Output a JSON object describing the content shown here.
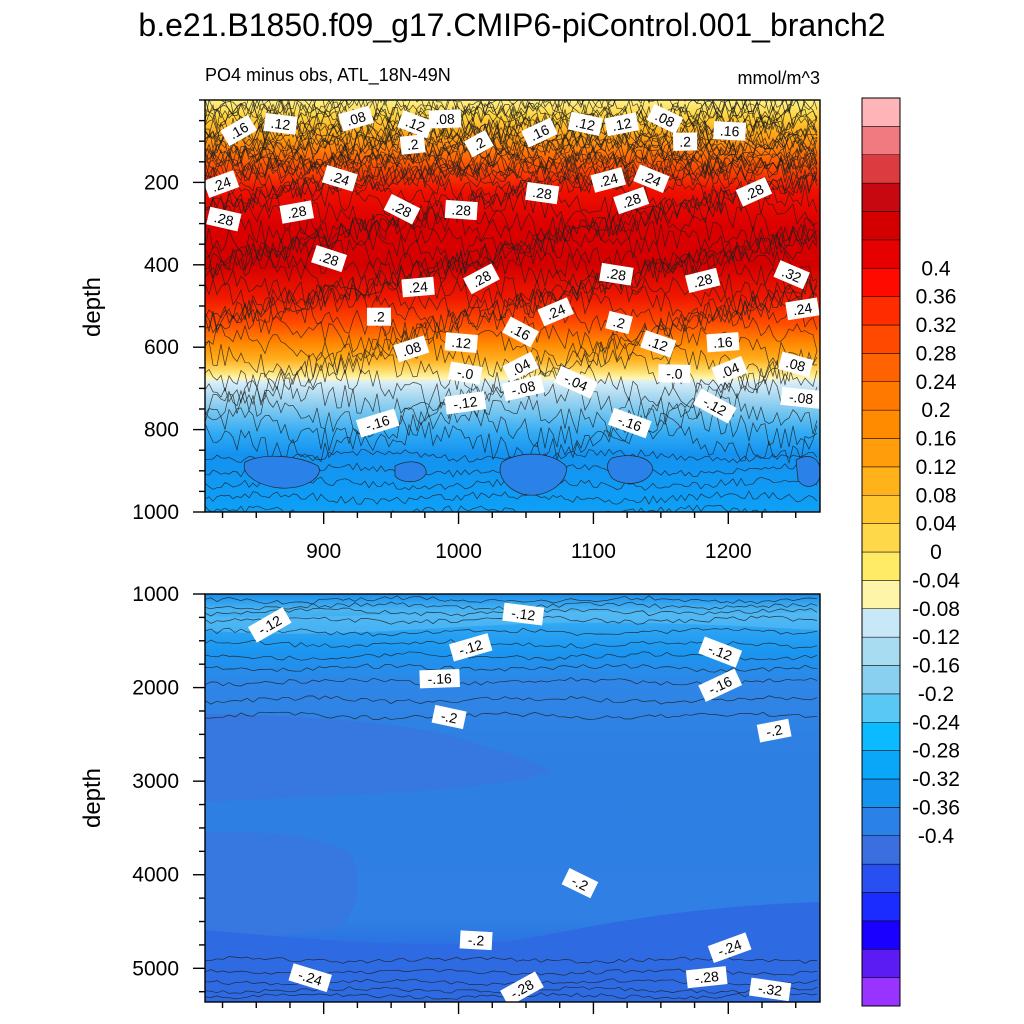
{
  "title": "b.e21.B1850.f09_g17.CMIP6-piControl.001_branch2",
  "chart_data": [
    {
      "type": "heatmap",
      "panel": "top",
      "left_label": "PO4 minus obs, ATL_18N-49N",
      "right_label": "mmol/m^3",
      "xlabel": "",
      "ylabel": "depth",
      "xlim": [
        812,
        1268
      ],
      "ylim": [
        1000,
        0
      ],
      "xticks": [
        900,
        1000,
        1100,
        1200
      ],
      "yticks": [
        200,
        400,
        600,
        800,
        1000
      ],
      "contour_labels": [
        {
          "text": ".16",
          "x": 837,
          "y": 74
        },
        {
          "text": ".12",
          "x": 868,
          "y": 58
        },
        {
          "text": ".08",
          "x": 924,
          "y": 45
        },
        {
          "text": ".12",
          "x": 968,
          "y": 59
        },
        {
          "text": ".08",
          "x": 990,
          "y": 46
        },
        {
          "text": ".16",
          "x": 1060,
          "y": 79
        },
        {
          "text": ".12",
          "x": 1094,
          "y": 58
        },
        {
          "text": ".12",
          "x": 1121,
          "y": 59
        },
        {
          "text": ".08",
          "x": 1153,
          "y": 46
        },
        {
          "text": ".16",
          "x": 1201,
          "y": 75
        },
        {
          "text": ".24",
          "x": 824,
          "y": 204
        },
        {
          "text": ".24",
          "x": 912,
          "y": 190
        },
        {
          "text": ".2",
          "x": 966,
          "y": 108
        },
        {
          "text": ".2",
          "x": 1015,
          "y": 106
        },
        {
          "text": ".28",
          "x": 1062,
          "y": 226
        },
        {
          "text": ".24",
          "x": 1111,
          "y": 194
        },
        {
          "text": ".24",
          "x": 1143,
          "y": 191
        },
        {
          "text": ".2",
          "x": 1168,
          "y": 101
        },
        {
          "text": ".28",
          "x": 1219,
          "y": 223
        },
        {
          "text": ".28",
          "x": 826,
          "y": 289
        },
        {
          "text": ".28",
          "x": 880,
          "y": 272
        },
        {
          "text": ".28",
          "x": 958,
          "y": 265
        },
        {
          "text": ".28",
          "x": 1002,
          "y": 267
        },
        {
          "text": ".28",
          "x": 1128,
          "y": 244
        },
        {
          "text": ".28",
          "x": 904,
          "y": 385
        },
        {
          "text": ".24",
          "x": 970,
          "y": 454
        },
        {
          "text": ".28",
          "x": 1017,
          "y": 434
        },
        {
          "text": ".28",
          "x": 1117,
          "y": 423
        },
        {
          "text": ".28",
          "x": 1181,
          "y": 438
        },
        {
          "text": ".32",
          "x": 1247,
          "y": 424
        },
        {
          "text": ".2",
          "x": 941,
          "y": 526
        },
        {
          "text": ".24",
          "x": 1072,
          "y": 514
        },
        {
          "text": ".2",
          "x": 1119,
          "y": 540
        },
        {
          "text": ".24",
          "x": 1255,
          "y": 507
        },
        {
          "text": ".16",
          "x": 1046,
          "y": 563
        },
        {
          "text": ".12",
          "x": 1002,
          "y": 589
        },
        {
          "text": ".08",
          "x": 965,
          "y": 604
        },
        {
          "text": ".12",
          "x": 1148,
          "y": 592
        },
        {
          "text": ".16",
          "x": 1196,
          "y": 588
        },
        {
          "text": ".04",
          "x": 1046,
          "y": 648
        },
        {
          "text": "-.0",
          "x": 1005,
          "y": 663
        },
        {
          "text": "-.08",
          "x": 1048,
          "y": 699
        },
        {
          "text": "-.04",
          "x": 1087,
          "y": 685
        },
        {
          "text": "-.0",
          "x": 1160,
          "y": 664
        },
        {
          "text": ".04",
          "x": 1201,
          "y": 656
        },
        {
          "text": ".08",
          "x": 1250,
          "y": 642
        },
        {
          "text": "-.12",
          "x": 1005,
          "y": 735
        },
        {
          "text": "-.12",
          "x": 1190,
          "y": 743
        },
        {
          "text": "-.08",
          "x": 1254,
          "y": 723
        },
        {
          "text": "-.16",
          "x": 940,
          "y": 784
        },
        {
          "text": "-.16",
          "x": 1127,
          "y": 784
        }
      ]
    },
    {
      "type": "heatmap",
      "panel": "bottom",
      "xlabel": "",
      "ylabel": "depth",
      "xlim": [
        812,
        1268
      ],
      "ylim": [
        5360,
        1000
      ],
      "xticks": [
        900,
        1000,
        1100,
        1200
      ],
      "yticks": [
        1000,
        2000,
        3000,
        4000,
        5000
      ],
      "contour_labels": [
        {
          "text": "-.12",
          "x": 860,
          "y": 1330
        },
        {
          "text": "-.12",
          "x": 1048,
          "y": 1215
        },
        {
          "text": "-.12",
          "x": 1009,
          "y": 1570
        },
        {
          "text": "-.12",
          "x": 1194,
          "y": 1620
        },
        {
          "text": "-.16",
          "x": 986,
          "y": 1905
        },
        {
          "text": "-.16",
          "x": 1194,
          "y": 1975
        },
        {
          "text": "-.2",
          "x": 993,
          "y": 2315
        },
        {
          "text": "-.2",
          "x": 1234,
          "y": 2460
        },
        {
          "text": "-.2",
          "x": 1090,
          "y": 4090
        },
        {
          "text": "-.2",
          "x": 1013,
          "y": 4700
        },
        {
          "text": "-.24",
          "x": 1201,
          "y": 4780
        },
        {
          "text": "-.24",
          "x": 890,
          "y": 5100
        },
        {
          "text": "-.28",
          "x": 1184,
          "y": 5095
        },
        {
          "text": "-.28",
          "x": 1047,
          "y": 5220
        },
        {
          "text": "-.32",
          "x": 1231,
          "y": 5225
        }
      ]
    }
  ],
  "colorbar": {
    "levels": [
      -0.4,
      -0.36,
      -0.32,
      -0.28,
      -0.24,
      -0.2,
      -0.16,
      -0.12,
      -0.08,
      -0.04,
      0,
      0.04,
      0.08,
      0.12,
      0.16,
      0.2,
      0.24,
      0.28,
      0.32,
      0.36,
      0.4
    ],
    "labels": [
      "-0.4",
      "-0.36",
      "-0.32",
      "-0.28",
      "-0.24",
      "-0.2",
      "-0.16",
      "-0.12",
      "-0.08",
      "-0.04",
      "0",
      "0.04",
      "0.08",
      "0.12",
      "0.16",
      "0.2",
      "0.24",
      "0.28",
      "0.32",
      "0.36",
      "0.4"
    ],
    "colors": [
      "#9933ff",
      "#5a1cf2",
      "#1a00ff",
      "#1a2cff",
      "#2850f0",
      "#3b6fe0",
      "#2a82e8",
      "#1493f0",
      "#0aa6f8",
      "#0bbaff",
      "#5ac8f5",
      "#88cff0",
      "#a8dcf0",
      "#c8e8f8",
      "#fff5a8",
      "#ffeb66",
      "#ffd84a",
      "#ffc62e",
      "#ffb21a",
      "#ff9e0a",
      "#ff8c00",
      "#ff7800",
      "#ff6200",
      "#ff4800",
      "#ff2c00",
      "#ff0a00",
      "#e60000",
      "#d40000",
      "#c80810",
      "#dc3c40",
      "#f07a80",
      "#ffb4b8"
    ]
  }
}
